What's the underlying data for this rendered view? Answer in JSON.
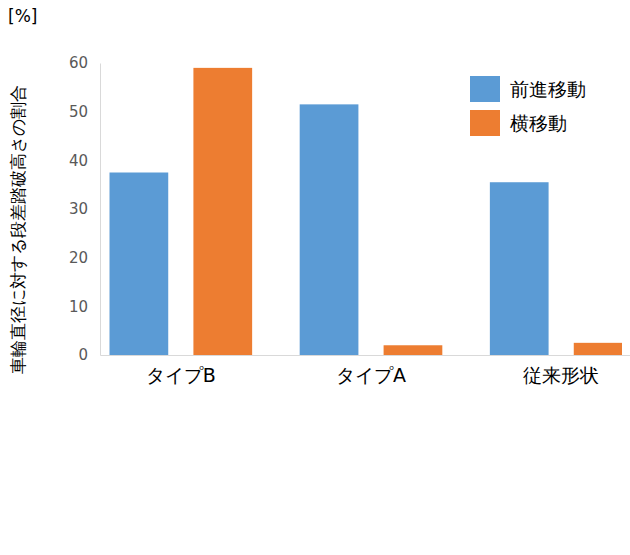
{
  "chart_data": {
    "type": "bar",
    "y_label": "車輪直径に対する段差踏破高さの割合",
    "annotations": [
      "[%]"
    ],
    "categories": [
      "タイプB",
      "タイプA",
      "従来形状"
    ],
    "series": [
      {
        "name": "前進移動",
        "color": "#5b9bd5",
        "values": [
          37.5,
          51.5,
          35.5
        ]
      },
      {
        "name": "横移動",
        "color": "#ed7d31",
        "values": [
          59,
          2,
          2.5
        ]
      }
    ],
    "ylim": [
      0,
      60
    ],
    "yticks": [
      0,
      10,
      20,
      30,
      40,
      50,
      60
    ],
    "grid": false,
    "legend": "upper right"
  }
}
